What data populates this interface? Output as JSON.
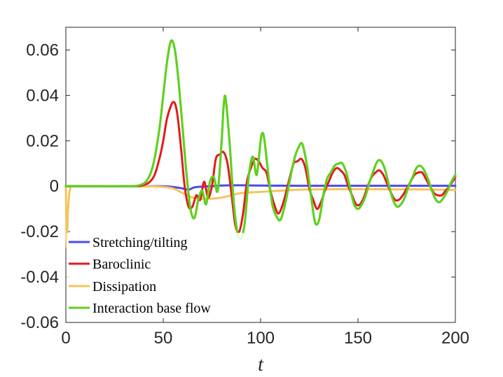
{
  "chart_data": {
    "type": "line",
    "title": "",
    "xlabel": "t",
    "ylabel": "",
    "xlim": [
      0,
      200
    ],
    "ylim": [
      -0.06,
      0.07
    ],
    "xticks": [
      0,
      50,
      100,
      150,
      200
    ],
    "xtick_labels": [
      "0",
      "50",
      "100",
      "150",
      "200"
    ],
    "yticks": [
      -0.06,
      -0.04,
      -0.02,
      0,
      0.02,
      0.04,
      0.06
    ],
    "ytick_labels": [
      "-0.06",
      "-0.04",
      "-0.02",
      "0",
      "0.02",
      "0.04",
      "0.06"
    ],
    "legend_position": "bottom-left",
    "series": [
      {
        "name": "Stretching/tilting",
        "color": "#4a4af0",
        "x": [
          0,
          40,
          50,
          55,
          60,
          63,
          66,
          70,
          75,
          80,
          90,
          100,
          120,
          140,
          160,
          180,
          200
        ],
        "y": [
          0,
          0,
          0,
          -0.0003,
          -0.001,
          -0.0015,
          -0.0005,
          -0.0002,
          0,
          0.0003,
          0.0004,
          0.0003,
          0.0002,
          0.0002,
          0.0002,
          0.0002,
          0.0002
        ]
      },
      {
        "name": "Baroclinic",
        "color": "#e41a1c",
        "x": [
          0,
          30,
          40,
          45,
          48,
          50,
          52,
          55,
          57,
          59,
          61,
          63,
          65,
          67,
          69,
          71,
          73,
          75,
          77,
          79,
          81,
          83,
          85,
          87,
          89,
          91,
          93,
          95,
          97,
          99,
          101,
          103,
          105,
          107,
          109,
          111,
          113,
          115,
          117,
          119,
          121,
          123,
          125,
          127,
          129,
          131,
          133,
          135,
          137,
          139,
          141,
          143,
          145,
          147,
          149,
          151,
          153,
          155,
          157,
          159,
          161,
          163,
          165,
          167,
          169,
          171,
          173,
          175,
          177,
          179,
          181,
          183,
          185,
          187,
          189,
          191,
          193,
          195,
          197,
          200
        ],
        "y": [
          0,
          0,
          0.0005,
          0.004,
          0.012,
          0.02,
          0.03,
          0.037,
          0.033,
          0.018,
          0.0,
          -0.009,
          -0.009,
          -0.004,
          -0.006,
          0.002,
          -0.005,
          0.0,
          0.012,
          0.014,
          0.015,
          0.01,
          -0.003,
          -0.017,
          -0.02,
          -0.012,
          0.002,
          0.008,
          0.012,
          0.011,
          0.008,
          0.006,
          -0.002,
          -0.008,
          -0.012,
          -0.009,
          -0.003,
          0.004,
          0.01,
          0.011,
          0.012,
          0.008,
          -0.001,
          -0.006,
          -0.01,
          -0.007,
          -0.002,
          0.002,
          0.006,
          0.008,
          0.007,
          0.005,
          0.0,
          -0.004,
          -0.008,
          -0.008,
          -0.005,
          0.0,
          0.004,
          0.006,
          0.007,
          0.005,
          0.001,
          -0.003,
          -0.006,
          -0.006,
          -0.004,
          -0.001,
          0.002,
          0.005,
          0.006,
          0.006,
          0.003,
          0.0,
          -0.003,
          -0.004,
          -0.004,
          -0.002,
          0.0,
          0.004
        ]
      },
      {
        "name": "Dissipation",
        "color": "#f6c35b",
        "x": [
          0,
          0.5,
          1,
          2,
          3,
          5,
          40,
          50,
          55,
          60,
          65,
          70,
          75,
          80,
          85,
          90,
          100,
          110,
          120,
          130,
          140,
          150,
          160,
          170,
          180,
          190,
          200
        ],
        "y": [
          0,
          -0.027,
          -0.012,
          -0.002,
          0,
          0,
          0,
          -0.0003,
          -0.001,
          -0.003,
          -0.005,
          -0.0055,
          -0.0055,
          -0.005,
          -0.004,
          -0.003,
          -0.0025,
          -0.002,
          -0.0015,
          -0.0014,
          -0.0013,
          -0.0013,
          -0.0013,
          -0.0014,
          -0.0014,
          -0.0015,
          -0.0016
        ]
      },
      {
        "name": "Interaction base flow",
        "color": "#5fd01f",
        "x": [
          0,
          30,
          38,
          42,
          45,
          48,
          50,
          52,
          54,
          56,
          58,
          60,
          62,
          64,
          66,
          68,
          70,
          72,
          74,
          76,
          78,
          80,
          81,
          82,
          84,
          86,
          88,
          90,
          92,
          94,
          96,
          98,
          100,
          101,
          102,
          104,
          106,
          108,
          110,
          112,
          114,
          116,
          118,
          120,
          121,
          122,
          124,
          126,
          128,
          130,
          132,
          134,
          136,
          138,
          140,
          142,
          144,
          146,
          148,
          150,
          152,
          154,
          156,
          158,
          160,
          162,
          164,
          166,
          168,
          170,
          172,
          174,
          176,
          178,
          180,
          182,
          184,
          186,
          188,
          190,
          192,
          194,
          196,
          198,
          200
        ],
        "y": [
          0,
          0,
          0.0005,
          0.003,
          0.01,
          0.025,
          0.04,
          0.055,
          0.064,
          0.06,
          0.045,
          0.025,
          0.005,
          -0.01,
          -0.014,
          -0.006,
          -0.002,
          -0.008,
          0.002,
          0.004,
          -0.002,
          0.02,
          0.035,
          0.039,
          0.02,
          -0.005,
          -0.02,
          -0.023,
          -0.015,
          0.005,
          0.013,
          0.005,
          0.02,
          0.0235,
          0.02,
          0.005,
          -0.008,
          -0.013,
          -0.015,
          -0.01,
          -0.002,
          0.007,
          0.014,
          0.018,
          0.019,
          0.017,
          0.008,
          -0.005,
          -0.016,
          -0.015,
          -0.005,
          0.003,
          0.006,
          0.009,
          0.01,
          0.01,
          0.006,
          -0.001,
          -0.008,
          -0.01,
          -0.008,
          -0.004,
          0.002,
          0.007,
          0.011,
          0.011,
          0.007,
          0.0,
          -0.006,
          -0.009,
          -0.008,
          -0.005,
          0.0,
          0.004,
          0.008,
          0.009,
          0.007,
          0.003,
          -0.002,
          -0.006,
          -0.007,
          -0.005,
          -0.002,
          0.002,
          0.005
        ]
      }
    ]
  }
}
